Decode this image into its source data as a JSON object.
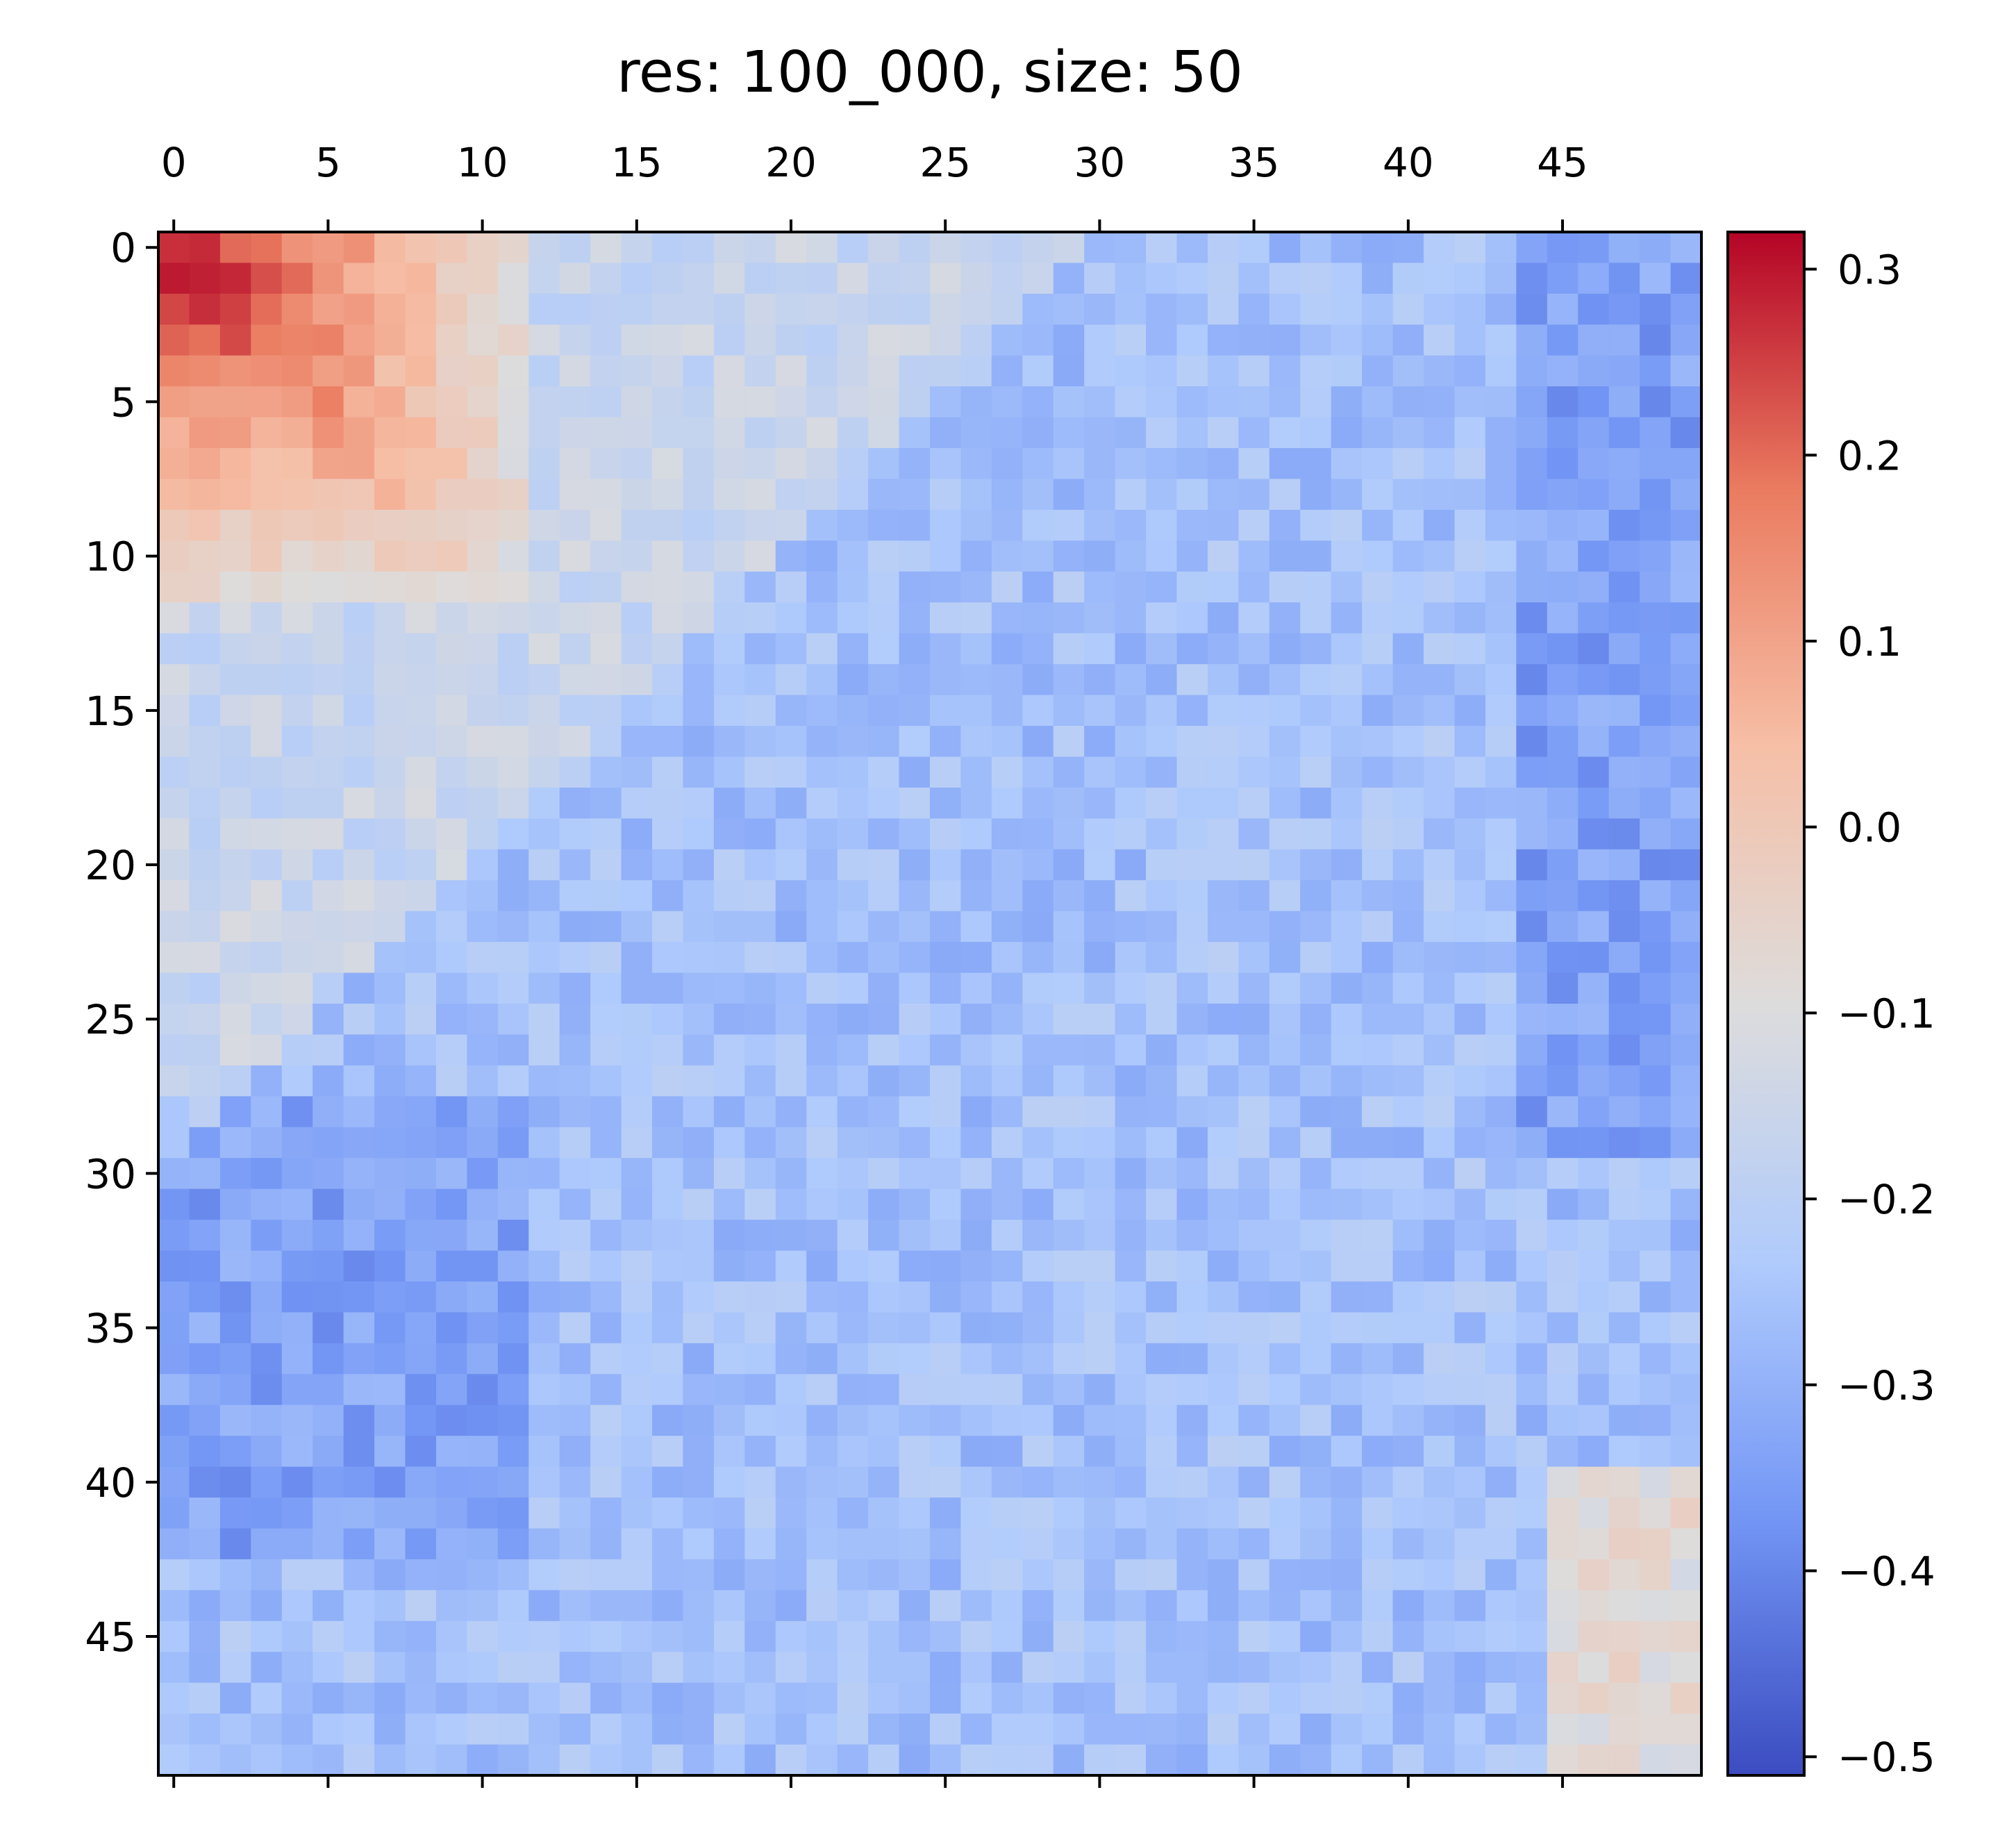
{
  "chart_data": {
    "type": "heatmap",
    "title": "res: 100_000, size: 50",
    "xlabel": "",
    "ylabel": "",
    "rows": 50,
    "cols": 50,
    "x_ticks": [
      0,
      5,
      10,
      15,
      20,
      25,
      30,
      35,
      40,
      45
    ],
    "x_tick_labels": [
      "0",
      "5",
      "10",
      "15",
      "20",
      "25",
      "30",
      "35",
      "40",
      "45"
    ],
    "y_ticks": [
      0,
      5,
      10,
      15,
      20,
      25,
      30,
      35,
      40,
      45
    ],
    "y_tick_labels": [
      "0",
      "5",
      "10",
      "15",
      "20",
      "25",
      "30",
      "35",
      "40",
      "45"
    ],
    "x_axis_position": "top",
    "colormap": "coolwarm",
    "colormap_stops": [
      "#3b4cc0",
      "#7396f5",
      "#b0cbfc",
      "#dddcdc",
      "#f6bfa6",
      "#ea7b60",
      "#b40426"
    ],
    "vmin": -0.51,
    "vmax": 0.32,
    "colorbar": {
      "position": "right",
      "ticks": [
        0.3,
        0.2,
        0.1,
        0.0,
        -0.1,
        -0.2,
        -0.3,
        -0.4,
        -0.5
      ],
      "tick_labels": [
        "0.3",
        "0.2",
        "0.1",
        "0.0",
        "−0.1",
        "−0.2",
        "−0.3",
        "−0.4",
        "−0.5"
      ]
    },
    "cell_rule": "Cell values estimated from the image's color gradient: approximately (0.31 - 0.035*max(i,j)) near the top-left corner, transitioning to values in the range -0.35 to -0.15 elsewhere, rising to about -0.05..0.05 near the bottom-right corner, with cell-level noise of roughly +/-0.06.",
    "values": []
  }
}
